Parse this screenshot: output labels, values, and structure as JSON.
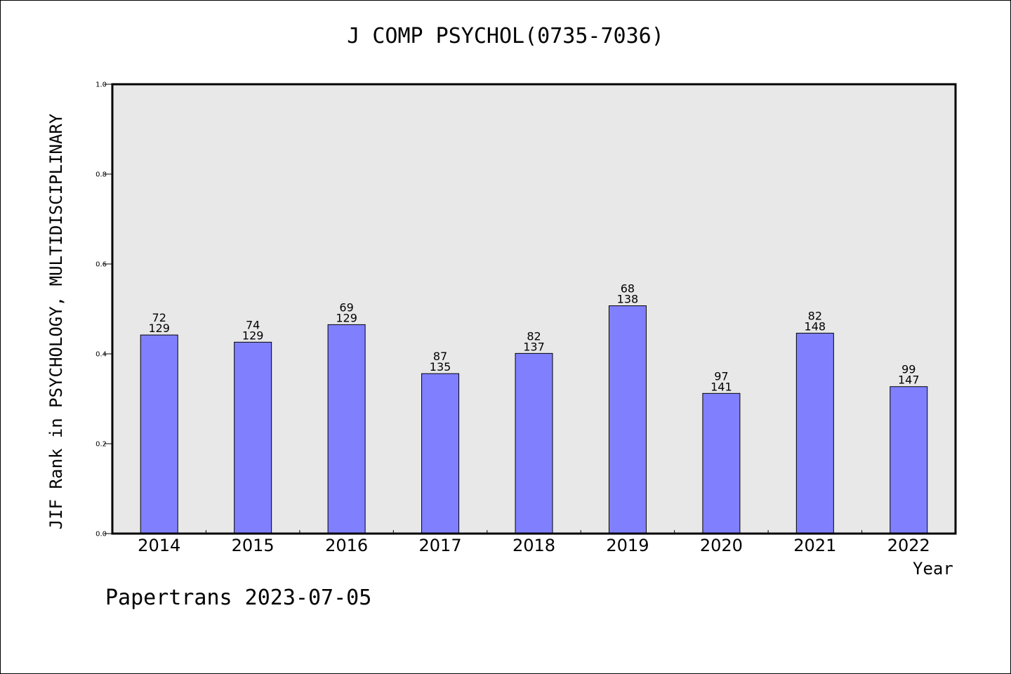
{
  "chart_data": {
    "type": "bar",
    "title": "J COMP PSYCHOL(0735-7036)",
    "xlabel": "Year",
    "ylabel": "JIF Rank in PSYCHOLOGY, MULTIDISCIPLINARY",
    "ylim": [
      0,
      1.0
    ],
    "yticks": [
      "0.0",
      "0.2",
      "0.4",
      "0.6",
      "0.8",
      "1.0"
    ],
    "categories": [
      "2014",
      "2015",
      "2016",
      "2017",
      "2018",
      "2019",
      "2020",
      "2021",
      "2022"
    ],
    "values": [
      0.442,
      0.426,
      0.465,
      0.356,
      0.401,
      0.507,
      0.312,
      0.446,
      0.327
    ],
    "rank": [
      "72",
      "74",
      "69",
      "87",
      "82",
      "68",
      "97",
      "82",
      "99"
    ],
    "total": [
      "129",
      "129",
      "129",
      "135",
      "137",
      "138",
      "141",
      "148",
      "147"
    ],
    "bar_color": "#8080ff",
    "plot_bg": "#e8e8e8",
    "grid": false
  },
  "footer": "Papertrans 2023-07-05"
}
